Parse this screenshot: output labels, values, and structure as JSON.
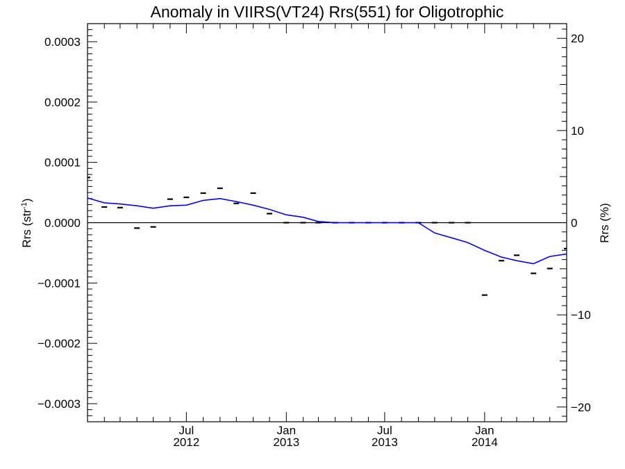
{
  "chart_data": {
    "type": "line",
    "title": "Anomaly in VIIRS(VT24) Rrs(551) for Oligotrophic",
    "ylabel_left": {
      "base": "Rrs (str",
      "sup": "-1",
      "end": ")"
    },
    "ylabel_right": "Rrs (%)",
    "x_range": [
      "2012-01-01",
      "2014-06-01"
    ],
    "ylim_left": [
      -0.00033,
      0.00033
    ],
    "ylim_right": [
      -21.6,
      21.6
    ],
    "left_ticks": [
      {
        "value": 0.0003,
        "label": "0.0003"
      },
      {
        "value": 0.0002,
        "label": "0.0002"
      },
      {
        "value": 0.0001,
        "label": "0.0001"
      },
      {
        "value": 0.0,
        "label": "0.0000"
      },
      {
        "value": -0.0001,
        "label": "−0.0001"
      },
      {
        "value": -0.0002,
        "label": "−0.0002"
      },
      {
        "value": -0.0003,
        "label": "−0.0003"
      }
    ],
    "right_ticks": [
      {
        "value": 20,
        "label": "20"
      },
      {
        "value": 10,
        "label": "10"
      },
      {
        "value": 0,
        "label": "0"
      },
      {
        "value": -10,
        "label": "−10"
      },
      {
        "value": -20,
        "label": "−20"
      }
    ],
    "x_ticks": [
      {
        "date": "2012-07-01",
        "month": "Jul",
        "year": "2012"
      },
      {
        "date": "2013-01-01",
        "month": "Jan",
        "year": "2013"
      },
      {
        "date": "2013-07-01",
        "month": "Jul",
        "year": "2013"
      },
      {
        "date": "2014-01-01",
        "month": "Jan",
        "year": "2014"
      }
    ],
    "zero_line": true,
    "series": [
      {
        "kind": "line",
        "color": "#0000ff",
        "points": [
          {
            "date": "2012-01-01",
            "value": 4.1e-05
          },
          {
            "date": "2012-02-01",
            "value": 3.3e-05
          },
          {
            "date": "2012-03-01",
            "value": 3.1e-05
          },
          {
            "date": "2012-04-01",
            "value": 2.8e-05
          },
          {
            "date": "2012-05-01",
            "value": 2.4e-05
          },
          {
            "date": "2012-06-01",
            "value": 2.8e-05
          },
          {
            "date": "2012-07-01",
            "value": 2.9e-05
          },
          {
            "date": "2012-08-01",
            "value": 3.7e-05
          },
          {
            "date": "2012-09-01",
            "value": 4e-05
          },
          {
            "date": "2012-10-01",
            "value": 3.5e-05
          },
          {
            "date": "2012-11-01",
            "value": 2.9e-05
          },
          {
            "date": "2012-12-01",
            "value": 2.2e-05
          },
          {
            "date": "2013-01-01",
            "value": 1.3e-05
          },
          {
            "date": "2013-02-01",
            "value": 9e-06
          },
          {
            "date": "2013-03-01",
            "value": 2e-06
          },
          {
            "date": "2013-04-01",
            "value": 0.0
          },
          {
            "date": "2013-05-01",
            "value": 0.0
          },
          {
            "date": "2013-06-01",
            "value": 0.0
          },
          {
            "date": "2013-07-01",
            "value": 0.0
          },
          {
            "date": "2013-08-01",
            "value": 0.0
          },
          {
            "date": "2013-09-01",
            "value": 0.0
          },
          {
            "date": "2013-10-01",
            "value": -1.7e-05
          },
          {
            "date": "2013-11-01",
            "value": -2.5e-05
          },
          {
            "date": "2013-12-01",
            "value": -3.3e-05
          },
          {
            "date": "2014-01-01",
            "value": -4.6e-05
          },
          {
            "date": "2014-02-01",
            "value": -5.7e-05
          },
          {
            "date": "2014-03-01",
            "value": -6.3e-05
          },
          {
            "date": "2014-04-01",
            "value": -6.8e-05
          },
          {
            "date": "2014-05-01",
            "value": -5.6e-05
          },
          {
            "date": "2014-06-01",
            "value": -5.2e-05
          }
        ]
      },
      {
        "kind": "markers",
        "color": "#000000",
        "points": [
          {
            "date": "2012-01-01",
            "value": 7.5e-05
          },
          {
            "date": "2012-02-01",
            "value": 2.6e-05
          },
          {
            "date": "2012-03-01",
            "value": 2.5e-05
          },
          {
            "date": "2012-04-01",
            "value": -9e-06
          },
          {
            "date": "2012-05-01",
            "value": -7e-06
          },
          {
            "date": "2012-06-01",
            "value": 3.9e-05
          },
          {
            "date": "2012-07-01",
            "value": 4.2e-05
          },
          {
            "date": "2012-08-01",
            "value": 4.9e-05
          },
          {
            "date": "2012-09-01",
            "value": 5.7e-05
          },
          {
            "date": "2012-10-01",
            "value": 3.2e-05
          },
          {
            "date": "2012-11-01",
            "value": 4.9e-05
          },
          {
            "date": "2012-12-01",
            "value": 1.5e-05
          },
          {
            "date": "2013-01-01",
            "value": 0.0
          },
          {
            "date": "2013-02-01",
            "value": 0.0
          },
          {
            "date": "2013-03-01",
            "value": 0.0
          },
          {
            "date": "2013-04-01",
            "value": 0.0
          },
          {
            "date": "2013-05-01",
            "value": 0.0
          },
          {
            "date": "2013-06-01",
            "value": 0.0
          },
          {
            "date": "2013-07-01",
            "value": 0.0
          },
          {
            "date": "2013-08-01",
            "value": 0.0
          },
          {
            "date": "2013-09-01",
            "value": 0.0
          },
          {
            "date": "2013-10-01",
            "value": 0.0
          },
          {
            "date": "2013-11-01",
            "value": 0.0
          },
          {
            "date": "2013-12-01",
            "value": 0.0
          },
          {
            "date": "2014-01-01",
            "value": -0.00012
          },
          {
            "date": "2014-02-01",
            "value": -6.3e-05
          },
          {
            "date": "2014-03-01",
            "value": -5.4e-05
          },
          {
            "date": "2014-04-01",
            "value": -8.4e-05
          },
          {
            "date": "2014-05-01",
            "value": -7.6e-05
          },
          {
            "date": "2014-06-01",
            "value": -4.3e-05
          }
        ]
      }
    ]
  }
}
